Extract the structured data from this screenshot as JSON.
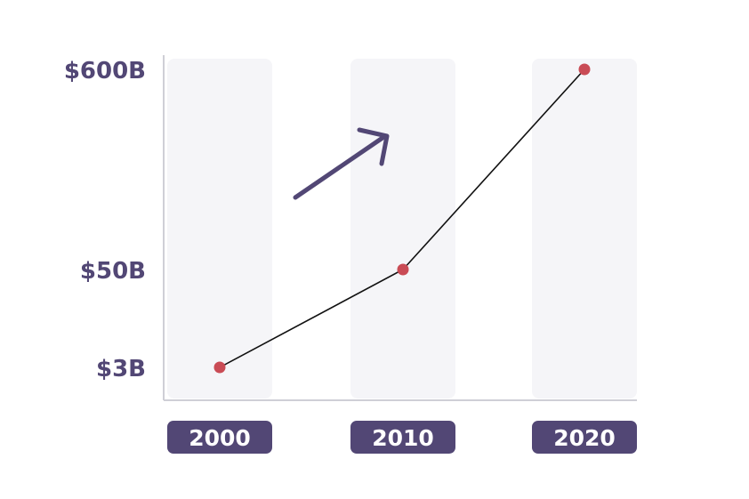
{
  "colors": {
    "accent": "#524775",
    "point": "#c94b55",
    "band": "#f5f5f8",
    "axis": "#cfcfd6",
    "line": "#111111",
    "pill_text": "#ffffff"
  },
  "chart_data": {
    "type": "line",
    "title": "",
    "xlabel": "",
    "ylabel": "",
    "x": [
      "2000",
      "2010",
      "2020"
    ],
    "y_ticks": [
      "$600B",
      "$50B",
      "$3B"
    ],
    "series": [
      {
        "values": [
          3,
          50,
          600
        ]
      }
    ],
    "annotations": [
      {
        "type": "arrow",
        "direction": "up-right",
        "meaning": "growth"
      }
    ],
    "grid": false
  }
}
